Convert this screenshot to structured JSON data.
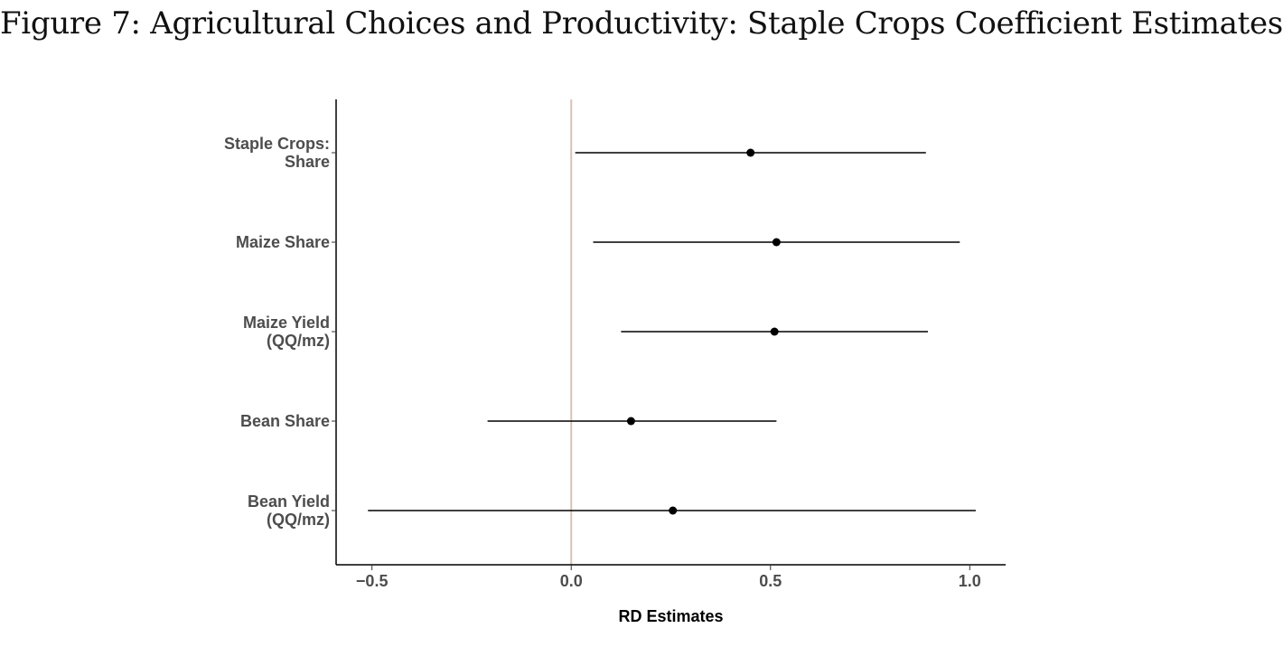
{
  "figure": {
    "title": "Figure 7: Agricultural Choices and Productivity: Staple Crops Coefficient Estimates"
  },
  "chart_data": {
    "type": "scatter",
    "subtype": "coefficient-plot-with-confidence-intervals",
    "title": "",
    "xlabel": "RD Estimates",
    "ylabel": "",
    "xlim": [
      -0.59,
      1.09
    ],
    "xticks": [
      -0.5,
      0.0,
      0.5,
      1.0
    ],
    "xtick_labels": [
      "−0.5",
      "0.0",
      "0.5",
      "1.0"
    ],
    "reference_line": 0.0,
    "reference_line_color": "#d9c2b5",
    "point_color": "#000000",
    "grid": false,
    "categories": [
      [
        "Staple Crops:",
        "Share"
      ],
      [
        "Maize Share"
      ],
      [
        "Maize Yield",
        "(QQ/mz)"
      ],
      [
        "Bean Share"
      ],
      [
        "Bean Yield",
        "(QQ/mz)"
      ]
    ],
    "estimates": [
      0.45,
      0.515,
      0.51,
      0.15,
      0.255
    ],
    "ci_low": [
      0.01,
      0.055,
      0.125,
      -0.21,
      -0.51
    ],
    "ci_high": [
      0.89,
      0.975,
      0.895,
      0.515,
      1.015
    ]
  }
}
